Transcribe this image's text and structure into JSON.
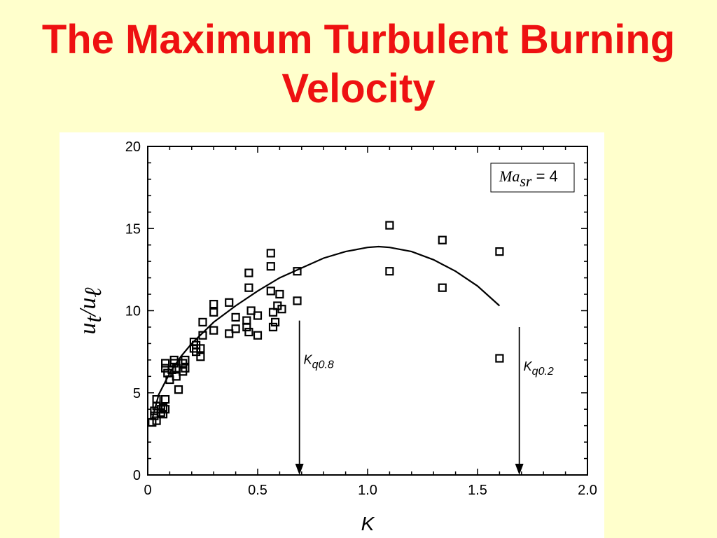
{
  "slide": {
    "title_line1": "The Maximum Turbulent Burning",
    "title_line2": "Velocity"
  },
  "colors": {
    "title": "#ee1111",
    "background": "#ffffcc",
    "panel": "#ffffff",
    "ink": "#000000"
  },
  "chart_data": {
    "type": "scatter",
    "title": "",
    "xlabel": "K",
    "ylabel": {
      "main": "u",
      "sub": "t",
      "sep": "/",
      "main2": "u",
      "sub2": "ℓ"
    },
    "xlim": [
      0,
      2.0
    ],
    "ylim": [
      0,
      20
    ],
    "xticks": [
      0,
      0.5,
      1.0,
      1.5,
      2.0
    ],
    "xtick_labels": [
      "0",
      "0.5",
      "1.0",
      "1.5",
      "2.0"
    ],
    "yticks": [
      0,
      5,
      10,
      15,
      20
    ],
    "ytick_labels": [
      "0",
      "5",
      "10",
      "15",
      "20"
    ],
    "grid": false,
    "legend": {
      "placement": "top-right",
      "text_main": "Ma",
      "text_sub": "sr",
      "text_value": " = 4"
    },
    "marker": "open-square",
    "points": [
      [
        0.02,
        3.2
      ],
      [
        0.03,
        3.6
      ],
      [
        0.03,
        3.9
      ],
      [
        0.04,
        4.2
      ],
      [
        0.04,
        4.6
      ],
      [
        0.04,
        3.3
      ],
      [
        0.06,
        3.8
      ],
      [
        0.06,
        4.0
      ],
      [
        0.07,
        3.7
      ],
      [
        0.07,
        4.1
      ],
      [
        0.08,
        4.6
      ],
      [
        0.08,
        4.0
      ],
      [
        0.08,
        6.5
      ],
      [
        0.08,
        6.8
      ],
      [
        0.09,
        6.2
      ],
      [
        0.1,
        5.8
      ],
      [
        0.11,
        6.4
      ],
      [
        0.12,
        7.0
      ],
      [
        0.12,
        6.8
      ],
      [
        0.13,
        6.0
      ],
      [
        0.13,
        6.5
      ],
      [
        0.14,
        5.2
      ],
      [
        0.16,
        6.8
      ],
      [
        0.16,
        6.3
      ],
      [
        0.17,
        7.0
      ],
      [
        0.17,
        6.5
      ],
      [
        0.21,
        8.1
      ],
      [
        0.21,
        7.7
      ],
      [
        0.22,
        7.9
      ],
      [
        0.22,
        7.5
      ],
      [
        0.24,
        7.2
      ],
      [
        0.24,
        7.7
      ],
      [
        0.25,
        8.5
      ],
      [
        0.25,
        9.3
      ],
      [
        0.3,
        8.8
      ],
      [
        0.3,
        9.9
      ],
      [
        0.3,
        10.4
      ],
      [
        0.37,
        8.6
      ],
      [
        0.37,
        10.5
      ],
      [
        0.4,
        9.6
      ],
      [
        0.4,
        8.9
      ],
      [
        0.45,
        9.4
      ],
      [
        0.45,
        9.0
      ],
      [
        0.46,
        12.3
      ],
      [
        0.46,
        11.4
      ],
      [
        0.46,
        8.7
      ],
      [
        0.47,
        10.0
      ],
      [
        0.5,
        8.5
      ],
      [
        0.5,
        9.7
      ],
      [
        0.56,
        13.5
      ],
      [
        0.56,
        12.7
      ],
      [
        0.56,
        11.2
      ],
      [
        0.57,
        9.9
      ],
      [
        0.57,
        9.0
      ],
      [
        0.58,
        9.3
      ],
      [
        0.59,
        10.3
      ],
      [
        0.6,
        11.0
      ],
      [
        0.61,
        10.1
      ],
      [
        0.68,
        12.4
      ],
      [
        0.68,
        10.6
      ],
      [
        1.1,
        15.2
      ],
      [
        1.1,
        12.4
      ],
      [
        1.34,
        14.3
      ],
      [
        1.34,
        11.4
      ],
      [
        1.6,
        13.6
      ],
      [
        1.6,
        7.1
      ]
    ],
    "fit_curve": [
      [
        0.02,
        3.4
      ],
      [
        0.05,
        4.9
      ],
      [
        0.1,
        6.2
      ],
      [
        0.15,
        7.2
      ],
      [
        0.2,
        8.0
      ],
      [
        0.3,
        9.3
      ],
      [
        0.4,
        10.3
      ],
      [
        0.5,
        11.2
      ],
      [
        0.6,
        12.0
      ],
      [
        0.7,
        12.6
      ],
      [
        0.8,
        13.2
      ],
      [
        0.9,
        13.6
      ],
      [
        1.0,
        13.85
      ],
      [
        1.05,
        13.9
      ],
      [
        1.1,
        13.85
      ],
      [
        1.2,
        13.6
      ],
      [
        1.3,
        13.1
      ],
      [
        1.4,
        12.4
      ],
      [
        1.5,
        11.5
      ],
      [
        1.6,
        10.3
      ]
    ],
    "annotations": [
      {
        "main": "K",
        "sub": "q0.8",
        "x": 0.69,
        "y_from": 9.4,
        "y_to": 0
      },
      {
        "main": "K",
        "sub": "q0.2",
        "x": 1.69,
        "y_from": 9.0,
        "y_to": 0
      }
    ]
  }
}
